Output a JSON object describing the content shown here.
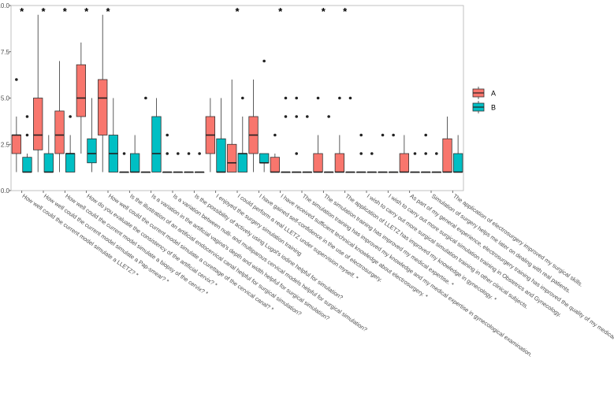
{
  "chart_data": {
    "type": "boxplot",
    "title": "",
    "xlabel": "",
    "ylabel": "",
    "ylim": [
      0,
      10
    ],
    "yticks": [
      "0.0",
      "2.5",
      "5.0",
      "7.5",
      "10.0"
    ],
    "ytick_values": [
      0,
      2.5,
      5,
      7.5,
      10
    ],
    "legend": {
      "position": "right",
      "entries": [
        "A",
        "B"
      ]
    },
    "colors": {
      "A": "#F8766D",
      "B": "#00BFC4"
    },
    "significance_marker": "*",
    "categories": [
      "How well could the current model simulate a LLETZ? *",
      "How well could the current model simulate a Pap-smear? *",
      "How well could the current model simulate a biopsy of the cervix? *",
      "How do you evaluate the consistency of the artificial cervix? *",
      "How well could the current model simulate a curettage of the cervical canal? *",
      "Is the illustration of an artificial endocervical canal helpful for surgical simulation?",
      "Is a variation in the artificial vagina's depth and width helpful for surgical simulation?",
      "Is a variation between nulli- and multiparous cervical models helpful for surgical simulation?",
      "Is the possibility of actively using Lugol's iodine helpful for simulation?",
      "I enjoyed the surgery simulation training",
      "I could perform a real LLETZ under supervision myself. *",
      "I have gained self-confidence in the use of electrosurgery.",
      "I have received sufficient technical knowledge about electrosurgery. *",
      "The simulation training has improved my knowledge and my medical expertise in gynecological examination.",
      "The simulation training has improved my medical expertise. *",
      "The application of LLETZ has improved my knowledge in gynecology. *",
      "I wish to carry out more surgical simulation training in other clinical subjects.",
      "I wish to carry out more surgical simulation training in Obstetrics and Gynecology.",
      "As part of my general experience, electrosurgery training has improved the quality of my medical training.",
      "Simulation of surgery helps me later on dealing with real patients.",
      "The application of electrosurgery improved my surgical skills."
    ],
    "significant": [
      true,
      true,
      true,
      true,
      true,
      false,
      false,
      false,
      false,
      false,
      true,
      false,
      true,
      false,
      true,
      true,
      false,
      false,
      false,
      false,
      false
    ],
    "series": [
      {
        "name": "A",
        "boxes": [
          {
            "min": 1,
            "q1": 2,
            "median": 3,
            "q3": 3,
            "max": 4,
            "outliers": [
              6
            ]
          },
          {
            "min": 1,
            "q1": 2.2,
            "median": 3,
            "q3": 5,
            "max": 9.5,
            "outliers": []
          },
          {
            "min": 1,
            "q1": 2,
            "median": 3,
            "q3": 4.3,
            "max": 7,
            "outliers": []
          },
          {
            "min": 2,
            "q1": 4,
            "median": 5,
            "q3": 6.8,
            "max": 8,
            "outliers": []
          },
          {
            "min": 1,
            "q1": 3,
            "median": 5,
            "q3": 6,
            "max": 9.5,
            "outliers": []
          },
          {
            "min": 1,
            "q1": 1,
            "median": 1,
            "q3": 1,
            "max": 1,
            "outliers": [
              2
            ]
          },
          {
            "min": 1,
            "q1": 1,
            "median": 1,
            "q3": 1,
            "max": 1,
            "outliers": [
              5
            ]
          },
          {
            "min": 1,
            "q1": 1,
            "median": 1,
            "q3": 1,
            "max": 1,
            "outliers": [
              2,
              3
            ]
          },
          {
            "min": 1,
            "q1": 1,
            "median": 1,
            "q3": 1,
            "max": 1,
            "outliers": [
              2
            ]
          },
          {
            "min": 1,
            "q1": 2,
            "median": 3,
            "q3": 4,
            "max": 5,
            "outliers": []
          },
          {
            "min": 1,
            "q1": 1,
            "median": 1.5,
            "q3": 2.5,
            "max": 6,
            "outliers": []
          },
          {
            "min": 1,
            "q1": 2,
            "median": 3,
            "q3": 4,
            "max": 6,
            "outliers": []
          },
          {
            "min": 1,
            "q1": 1,
            "median": 1,
            "q3": 1.8,
            "max": 2,
            "outliers": [
              3
            ]
          },
          {
            "min": 1,
            "q1": 1,
            "median": 1,
            "q3": 1,
            "max": 1,
            "outliers": [
              2,
              4,
              5
            ]
          },
          {
            "min": 1,
            "q1": 1,
            "median": 1,
            "q3": 2,
            "max": 3,
            "outliers": [
              5
            ]
          },
          {
            "min": 1,
            "q1": 1,
            "median": 1,
            "q3": 2,
            "max": 3,
            "outliers": [
              5
            ]
          },
          {
            "min": 1,
            "q1": 1,
            "median": 1,
            "q3": 1,
            "max": 1,
            "outliers": [
              2,
              3
            ]
          },
          {
            "min": 1,
            "q1": 1,
            "median": 1,
            "q3": 1,
            "max": 1,
            "outliers": [
              3
            ]
          },
          {
            "min": 1,
            "q1": 1,
            "median": 1,
            "q3": 2,
            "max": 3,
            "outliers": []
          },
          {
            "min": 1,
            "q1": 1,
            "median": 1,
            "q3": 1,
            "max": 1,
            "outliers": [
              2,
              3
            ]
          },
          {
            "min": 1,
            "q1": 1,
            "median": 1,
            "q3": 2.8,
            "max": 4,
            "outliers": []
          }
        ]
      },
      {
        "name": "B",
        "boxes": [
          {
            "min": 1,
            "q1": 1,
            "median": 1,
            "q3": 1.8,
            "max": 2,
            "outliers": [
              3,
              4
            ]
          },
          {
            "min": 1,
            "q1": 1,
            "median": 1,
            "q3": 2,
            "max": 3,
            "outliers": []
          },
          {
            "min": 1,
            "q1": 1,
            "median": 2,
            "q3": 2,
            "max": 3,
            "outliers": [
              4
            ]
          },
          {
            "min": 1,
            "q1": 1.5,
            "median": 2,
            "q3": 2.8,
            "max": 5,
            "outliers": []
          },
          {
            "min": 1,
            "q1": 1,
            "median": 2,
            "q3": 3,
            "max": 5,
            "outliers": []
          },
          {
            "min": 1,
            "q1": 1,
            "median": 1,
            "q3": 2,
            "max": 3,
            "outliers": []
          },
          {
            "min": 1,
            "q1": 1,
            "median": 2,
            "q3": 4,
            "max": 5,
            "outliers": []
          },
          {
            "min": 1,
            "q1": 1,
            "median": 1,
            "q3": 1,
            "max": 1,
            "outliers": [
              2
            ]
          },
          {
            "min": 1,
            "q1": 1,
            "median": 1,
            "q3": 1,
            "max": 1,
            "outliers": [
              2
            ]
          },
          {
            "min": 1,
            "q1": 1,
            "median": 1,
            "q3": 2.8,
            "max": 5,
            "outliers": []
          },
          {
            "min": 1,
            "q1": 1,
            "median": 2,
            "q3": 2,
            "max": 4,
            "outliers": [
              5
            ]
          },
          {
            "min": 1,
            "q1": 1.5,
            "median": 1.5,
            "q3": 2,
            "max": 2,
            "outliers": [
              7
            ]
          },
          {
            "min": 1,
            "q1": 1,
            "median": 1,
            "q3": 1,
            "max": 1,
            "outliers": [
              4,
              5
            ]
          },
          {
            "min": 1,
            "q1": 1,
            "median": 1,
            "q3": 1,
            "max": 1,
            "outliers": [
              4
            ]
          },
          {
            "min": 1,
            "q1": 1,
            "median": 1,
            "q3": 1,
            "max": 1,
            "outliers": [
              4
            ]
          },
          {
            "min": 1,
            "q1": 1,
            "median": 1,
            "q3": 1,
            "max": 1,
            "outliers": [
              5
            ]
          },
          {
            "min": 1,
            "q1": 1,
            "median": 1,
            "q3": 1,
            "max": 1,
            "outliers": [
              2
            ]
          },
          {
            "min": 1,
            "q1": 1,
            "median": 1,
            "q3": 1,
            "max": 1,
            "outliers": [
              3
            ]
          },
          {
            "min": 1,
            "q1": 1,
            "median": 1,
            "q3": 1,
            "max": 1,
            "outliers": [
              2
            ]
          },
          {
            "min": 1,
            "q1": 1,
            "median": 1,
            "q3": 1,
            "max": 1,
            "outliers": [
              2
            ]
          },
          {
            "min": 1,
            "q1": 1,
            "median": 1,
            "q3": 2,
            "max": 3,
            "outliers": []
          }
        ]
      }
    ]
  }
}
